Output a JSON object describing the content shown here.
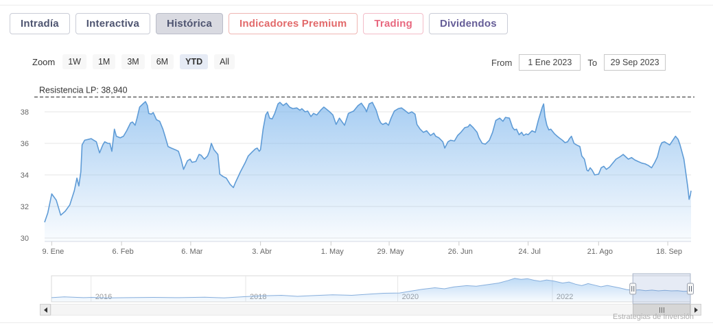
{
  "tabs": {
    "items": [
      {
        "label": "Intradía",
        "state": "default"
      },
      {
        "label": "Interactiva",
        "state": "default"
      },
      {
        "label": "Histórica",
        "state": "active"
      },
      {
        "label": "Indicadores Premium",
        "state": "premium"
      },
      {
        "label": "Trading",
        "state": "trading"
      },
      {
        "label": "Dividendos",
        "state": "dividends"
      }
    ]
  },
  "toolbar": {
    "zoom_label": "Zoom",
    "ranges": [
      {
        "label": "1W",
        "selected": false
      },
      {
        "label": "1M",
        "selected": false
      },
      {
        "label": "3M",
        "selected": false
      },
      {
        "label": "6M",
        "selected": false
      },
      {
        "label": "YTD",
        "selected": true
      },
      {
        "label": "All",
        "selected": false
      }
    ],
    "from_label": "From",
    "from_value": "1 Ene 2023",
    "to_label": "To",
    "to_value": "29 Sep 2023"
  },
  "watermark": "Estrategias de Inversión",
  "colors": {
    "series_line": "#5e9bd6",
    "series_fill": "#7cb5ec",
    "grid": "#e6e6e6",
    "axis_label": "#666666",
    "resistance_line": "#222222",
    "tab_text": "#4e5470",
    "premium_red": "#e2696a",
    "trading_pink": "#e8687f",
    "dividends_purple": "#655d97",
    "selection_mask": "rgba(102,133,194,0.16)"
  },
  "chart_data": [
    {
      "type": "area",
      "role": "main",
      "title": "",
      "annotation": {
        "label": "Resistencia LP: 38,940",
        "value": 38.94
      },
      "y_ticks": [
        38,
        36,
        34,
        32,
        30
      ],
      "y_range": [
        29.8,
        39.9
      ],
      "x_ticks": [
        {
          "label": "9. Ene",
          "f": 0.011
        },
        {
          "label": "6. Feb",
          "f": 0.119
        },
        {
          "label": "6. Mar",
          "f": 0.226
        },
        {
          "label": "3. Abr",
          "f": 0.334
        },
        {
          "label": "1. May",
          "f": 0.443
        },
        {
          "label": "29. May",
          "f": 0.533
        },
        {
          "label": "26. Jun",
          "f": 0.641
        },
        {
          "label": "24. Jul",
          "f": 0.748
        },
        {
          "label": "21. Ago",
          "f": 0.857
        },
        {
          "label": "18. Sep",
          "f": 0.964
        }
      ],
      "x_period": "1 Ene 2023 – 29 Sep 2023",
      "grid": true,
      "legend": false,
      "points": [
        [
          0.0,
          31.0
        ],
        [
          0.005,
          31.6
        ],
        [
          0.011,
          32.8
        ],
        [
          0.018,
          32.4
        ],
        [
          0.025,
          31.45
        ],
        [
          0.032,
          31.7
        ],
        [
          0.039,
          32.1
        ],
        [
          0.046,
          33.0
        ],
        [
          0.05,
          33.8
        ],
        [
          0.053,
          33.3
        ],
        [
          0.056,
          34.2
        ],
        [
          0.058,
          35.9
        ],
        [
          0.062,
          36.2
        ],
        [
          0.067,
          36.25
        ],
        [
          0.072,
          36.3
        ],
        [
          0.076,
          36.2
        ],
        [
          0.08,
          36.1
        ],
        [
          0.085,
          35.4
        ],
        [
          0.09,
          35.9
        ],
        [
          0.093,
          36.1
        ],
        [
          0.098,
          36.0
        ],
        [
          0.101,
          36.0
        ],
        [
          0.104,
          35.5
        ],
        [
          0.108,
          36.9
        ],
        [
          0.111,
          36.45
        ],
        [
          0.117,
          36.35
        ],
        [
          0.122,
          36.45
        ],
        [
          0.127,
          36.8
        ],
        [
          0.133,
          37.3
        ],
        [
          0.136,
          37.35
        ],
        [
          0.14,
          37.15
        ],
        [
          0.143,
          37.6
        ],
        [
          0.147,
          38.3
        ],
        [
          0.152,
          38.5
        ],
        [
          0.156,
          38.65
        ],
        [
          0.159,
          38.4
        ],
        [
          0.161,
          37.9
        ],
        [
          0.165,
          37.85
        ],
        [
          0.168,
          37.95
        ],
        [
          0.173,
          37.5
        ],
        [
          0.178,
          37.4
        ],
        [
          0.183,
          36.9
        ],
        [
          0.186,
          36.5
        ],
        [
          0.191,
          35.8
        ],
        [
          0.196,
          35.7
        ],
        [
          0.202,
          35.6
        ],
        [
          0.207,
          35.5
        ],
        [
          0.211,
          35.0
        ],
        [
          0.215,
          34.35
        ],
        [
          0.221,
          34.9
        ],
        [
          0.225,
          35.0
        ],
        [
          0.228,
          34.8
        ],
        [
          0.234,
          34.85
        ],
        [
          0.239,
          35.3
        ],
        [
          0.242,
          35.25
        ],
        [
          0.247,
          35.0
        ],
        [
          0.252,
          35.2
        ],
        [
          0.255,
          35.5
        ],
        [
          0.258,
          36.0
        ],
        [
          0.262,
          35.6
        ],
        [
          0.268,
          35.3
        ],
        [
          0.271,
          34.05
        ],
        [
          0.276,
          33.9
        ],
        [
          0.281,
          33.8
        ],
        [
          0.287,
          33.4
        ],
        [
          0.292,
          33.2
        ],
        [
          0.295,
          33.5
        ],
        [
          0.303,
          34.2
        ],
        [
          0.31,
          34.75
        ],
        [
          0.315,
          35.2
        ],
        [
          0.321,
          35.45
        ],
        [
          0.326,
          35.65
        ],
        [
          0.329,
          35.7
        ],
        [
          0.332,
          35.5
        ],
        [
          0.334,
          35.6
        ],
        [
          0.338,
          36.9
        ],
        [
          0.342,
          37.8
        ],
        [
          0.345,
          38.0
        ],
        [
          0.348,
          37.6
        ],
        [
          0.352,
          37.55
        ],
        [
          0.356,
          37.9
        ],
        [
          0.361,
          38.5
        ],
        [
          0.364,
          38.6
        ],
        [
          0.369,
          38.4
        ],
        [
          0.374,
          38.55
        ],
        [
          0.379,
          38.3
        ],
        [
          0.384,
          38.2
        ],
        [
          0.39,
          38.25
        ],
        [
          0.395,
          38.1
        ],
        [
          0.398,
          38.2
        ],
        [
          0.403,
          38.0
        ],
        [
          0.407,
          38.05
        ],
        [
          0.412,
          37.7
        ],
        [
          0.416,
          37.9
        ],
        [
          0.421,
          37.8
        ],
        [
          0.427,
          38.1
        ],
        [
          0.432,
          38.3
        ],
        [
          0.435,
          38.2
        ],
        [
          0.441,
          38.0
        ],
        [
          0.446,
          37.8
        ],
        [
          0.451,
          37.2
        ],
        [
          0.456,
          37.6
        ],
        [
          0.464,
          37.15
        ],
        [
          0.47,
          37.9
        ],
        [
          0.478,
          38.05
        ],
        [
          0.485,
          38.4
        ],
        [
          0.49,
          38.55
        ],
        [
          0.496,
          38.2
        ],
        [
          0.498,
          38.0
        ],
        [
          0.502,
          38.5
        ],
        [
          0.507,
          38.6
        ],
        [
          0.513,
          38.1
        ],
        [
          0.517,
          37.55
        ],
        [
          0.52,
          37.3
        ],
        [
          0.523,
          37.2
        ],
        [
          0.528,
          37.3
        ],
        [
          0.532,
          37.15
        ],
        [
          0.536,
          37.6
        ],
        [
          0.541,
          38.05
        ],
        [
          0.547,
          38.2
        ],
        [
          0.552,
          38.25
        ],
        [
          0.557,
          38.1
        ],
        [
          0.563,
          37.9
        ],
        [
          0.568,
          38.0
        ],
        [
          0.573,
          37.85
        ],
        [
          0.576,
          37.2
        ],
        [
          0.581,
          36.9
        ],
        [
          0.586,
          36.7
        ],
        [
          0.591,
          36.8
        ],
        [
          0.597,
          36.5
        ],
        [
          0.602,
          36.65
        ],
        [
          0.605,
          36.45
        ],
        [
          0.61,
          36.35
        ],
        [
          0.616,
          36.1
        ],
        [
          0.619,
          35.7
        ],
        [
          0.624,
          36.1
        ],
        [
          0.628,
          36.2
        ],
        [
          0.634,
          36.15
        ],
        [
          0.639,
          36.5
        ],
        [
          0.644,
          36.7
        ],
        [
          0.65,
          37.0
        ],
        [
          0.655,
          37.05
        ],
        [
          0.658,
          37.2
        ],
        [
          0.663,
          37.0
        ],
        [
          0.669,
          36.7
        ],
        [
          0.672,
          36.35
        ],
        [
          0.677,
          36.0
        ],
        [
          0.682,
          35.95
        ],
        [
          0.688,
          36.2
        ],
        [
          0.693,
          36.7
        ],
        [
          0.698,
          37.45
        ],
        [
          0.704,
          37.6
        ],
        [
          0.709,
          37.4
        ],
        [
          0.713,
          37.65
        ],
        [
          0.719,
          37.6
        ],
        [
          0.724,
          37.0
        ],
        [
          0.727,
          36.85
        ],
        [
          0.73,
          36.9
        ],
        [
          0.734,
          36.55
        ],
        [
          0.738,
          36.7
        ],
        [
          0.741,
          36.5
        ],
        [
          0.745,
          36.6
        ],
        [
          0.748,
          36.55
        ],
        [
          0.754,
          36.8
        ],
        [
          0.759,
          36.7
        ],
        [
          0.764,
          37.5
        ],
        [
          0.77,
          38.3
        ],
        [
          0.772,
          38.5
        ],
        [
          0.774,
          37.7
        ],
        [
          0.777,
          37.15
        ],
        [
          0.78,
          36.85
        ],
        [
          0.783,
          36.9
        ],
        [
          0.789,
          36.6
        ],
        [
          0.793,
          36.45
        ],
        [
          0.796,
          36.35
        ],
        [
          0.801,
          36.2
        ],
        [
          0.805,
          36.05
        ],
        [
          0.809,
          36.1
        ],
        [
          0.812,
          36.3
        ],
        [
          0.815,
          36.45
        ],
        [
          0.819,
          36.0
        ],
        [
          0.823,
          35.9
        ],
        [
          0.828,
          35.8
        ],
        [
          0.831,
          35.2
        ],
        [
          0.835,
          35.0
        ],
        [
          0.839,
          34.3
        ],
        [
          0.841,
          34.25
        ],
        [
          0.844,
          34.45
        ],
        [
          0.847,
          34.3
        ],
        [
          0.851,
          34.0
        ],
        [
          0.857,
          34.05
        ],
        [
          0.861,
          34.45
        ],
        [
          0.865,
          34.55
        ],
        [
          0.869,
          34.35
        ],
        [
          0.874,
          34.5
        ],
        [
          0.879,
          34.75
        ],
        [
          0.884,
          35.0
        ],
        [
          0.89,
          35.15
        ],
        [
          0.895,
          35.3
        ],
        [
          0.899,
          35.15
        ],
        [
          0.903,
          35.0
        ],
        [
          0.908,
          35.1
        ],
        [
          0.913,
          34.95
        ],
        [
          0.918,
          34.85
        ],
        [
          0.924,
          34.75
        ],
        [
          0.929,
          34.7
        ],
        [
          0.934,
          34.6
        ],
        [
          0.939,
          34.45
        ],
        [
          0.944,
          34.8
        ],
        [
          0.948,
          35.15
        ],
        [
          0.952,
          35.8
        ],
        [
          0.955,
          36.05
        ],
        [
          0.959,
          36.1
        ],
        [
          0.963,
          36.0
        ],
        [
          0.967,
          35.9
        ],
        [
          0.971,
          36.15
        ],
        [
          0.976,
          36.45
        ],
        [
          0.98,
          36.25
        ],
        [
          0.983,
          35.9
        ],
        [
          0.986,
          35.45
        ],
        [
          0.989,
          35.0
        ],
        [
          0.992,
          34.1
        ],
        [
          0.995,
          33.2
        ],
        [
          0.997,
          32.45
        ],
        [
          0.999,
          32.75
        ],
        [
          1.0,
          33.0
        ]
      ]
    },
    {
      "type": "area",
      "role": "navigator",
      "year_labels": [
        {
          "label": "2016",
          "f": 0.062
        },
        {
          "label": "2018",
          "f": 0.304
        },
        {
          "label": "2020",
          "f": 0.542
        },
        {
          "label": "2022",
          "f": 0.784
        }
      ],
      "selection": [
        0.91,
        1.0
      ],
      "points_note": "x = fraction of navigator width (≈ mid-2015 → Sep 2023), y = relative height 0–1",
      "points": [
        [
          0.0,
          0.16
        ],
        [
          0.02,
          0.19
        ],
        [
          0.05,
          0.16
        ],
        [
          0.063,
          0.17
        ],
        [
          0.09,
          0.15
        ],
        [
          0.12,
          0.16
        ],
        [
          0.16,
          0.17
        ],
        [
          0.2,
          0.16
        ],
        [
          0.24,
          0.18
        ],
        [
          0.27,
          0.15
        ],
        [
          0.304,
          0.2
        ],
        [
          0.33,
          0.23
        ],
        [
          0.36,
          0.25
        ],
        [
          0.385,
          0.21
        ],
        [
          0.41,
          0.24
        ],
        [
          0.44,
          0.27
        ],
        [
          0.47,
          0.25
        ],
        [
          0.5,
          0.3
        ],
        [
          0.52,
          0.33
        ],
        [
          0.545,
          0.34
        ],
        [
          0.56,
          0.4
        ],
        [
          0.58,
          0.48
        ],
        [
          0.6,
          0.54
        ],
        [
          0.615,
          0.5
        ],
        [
          0.63,
          0.57
        ],
        [
          0.65,
          0.62
        ],
        [
          0.665,
          0.6
        ],
        [
          0.68,
          0.65
        ],
        [
          0.7,
          0.72
        ],
        [
          0.715,
          0.82
        ],
        [
          0.725,
          0.9
        ],
        [
          0.735,
          0.86
        ],
        [
          0.745,
          0.89
        ],
        [
          0.755,
          0.83
        ],
        [
          0.765,
          0.79
        ],
        [
          0.775,
          0.84
        ],
        [
          0.786,
          0.8
        ],
        [
          0.8,
          0.72
        ],
        [
          0.81,
          0.76
        ],
        [
          0.82,
          0.68
        ],
        [
          0.83,
          0.62
        ],
        [
          0.84,
          0.7
        ],
        [
          0.85,
          0.64
        ],
        [
          0.86,
          0.58
        ],
        [
          0.87,
          0.63
        ],
        [
          0.88,
          0.58
        ],
        [
          0.89,
          0.53
        ],
        [
          0.9,
          0.47
        ],
        [
          0.91,
          0.44
        ],
        [
          0.92,
          0.46
        ],
        [
          0.93,
          0.43
        ],
        [
          0.94,
          0.45
        ],
        [
          0.95,
          0.42
        ],
        [
          0.96,
          0.44
        ],
        [
          0.97,
          0.42
        ],
        [
          0.98,
          0.43
        ],
        [
          0.99,
          0.4
        ],
        [
          1.0,
          0.42
        ]
      ]
    }
  ]
}
